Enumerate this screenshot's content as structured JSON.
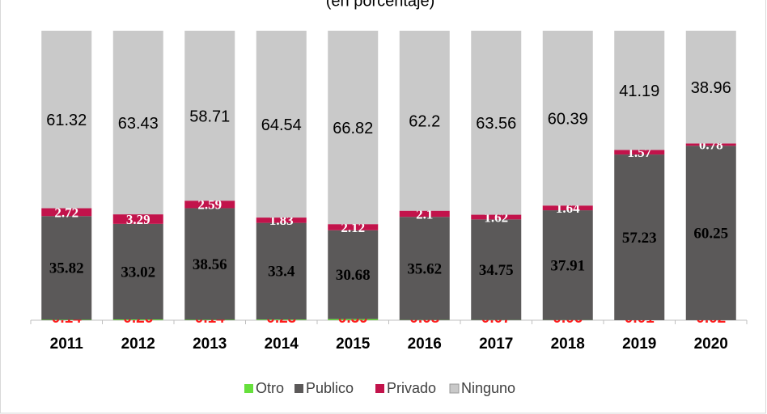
{
  "chart_data": {
    "type": "stacked_bar",
    "title": "(en porcentaje)",
    "categories": [
      "2011",
      "2012",
      "2013",
      "2014",
      "2015",
      "2016",
      "2017",
      "2018",
      "2019",
      "2020"
    ],
    "series": [
      {
        "name": "Otro",
        "color": "#66e03c",
        "values": [
          0.14,
          0.26,
          0.14,
          0.23,
          0.39,
          0.08,
          0.07,
          0.06,
          0.01,
          0.02
        ]
      },
      {
        "name": "Publico",
        "color": "#5b5959",
        "values": [
          35.82,
          33.02,
          38.56,
          33.4,
          30.68,
          35.62,
          34.75,
          37.91,
          57.23,
          60.25
        ]
      },
      {
        "name": "Privado",
        "color": "#c2134b",
        "values": [
          2.72,
          3.29,
          2.59,
          1.83,
          2.12,
          2.1,
          1.62,
          1.64,
          1.57,
          0.78
        ]
      },
      {
        "name": "Ninguno",
        "color": "#c9c9c9",
        "values": [
          61.32,
          63.43,
          58.71,
          64.54,
          66.82,
          62.2,
          63.56,
          60.39,
          41.19,
          38.96
        ]
      }
    ],
    "ylim": [
      0,
      100
    ],
    "legend": "bottom"
  }
}
